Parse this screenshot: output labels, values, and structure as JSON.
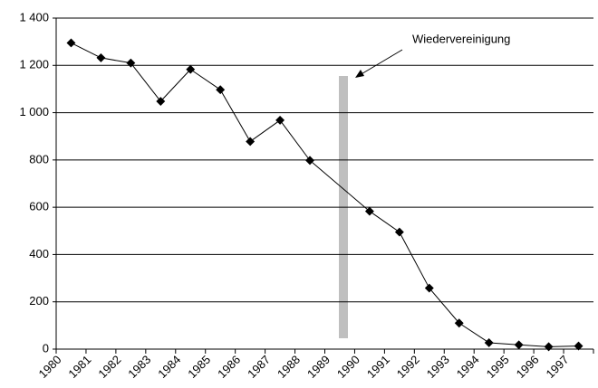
{
  "chart_data": {
    "type": "line",
    "categories": [
      "1980",
      "1981",
      "1982",
      "1983",
      "1984",
      "1985",
      "1986",
      "1987",
      "1988",
      "1989",
      "1990",
      "1991",
      "1992",
      "1993",
      "1994",
      "1995",
      "1996",
      "1997"
    ],
    "series": [
      {
        "name": null,
        "color": "#000000",
        "values": [
          1295,
          1232,
          1210,
          1048,
          1183,
          1097,
          878,
          968,
          798,
          null,
          583,
          495,
          258,
          110,
          27,
          18,
          10,
          13
        ]
      }
    ],
    "ylim": [
      0,
      1400
    ],
    "yticks": [
      0,
      200,
      400,
      600,
      800,
      {
        "value": 1000,
        "label": "1 000"
      },
      {
        "value": 1200,
        "label": "1 200"
      },
      {
        "value": 1400,
        "label": "1 400"
      }
    ],
    "grid": true,
    "annotation": "Wiedervereinigung"
  }
}
